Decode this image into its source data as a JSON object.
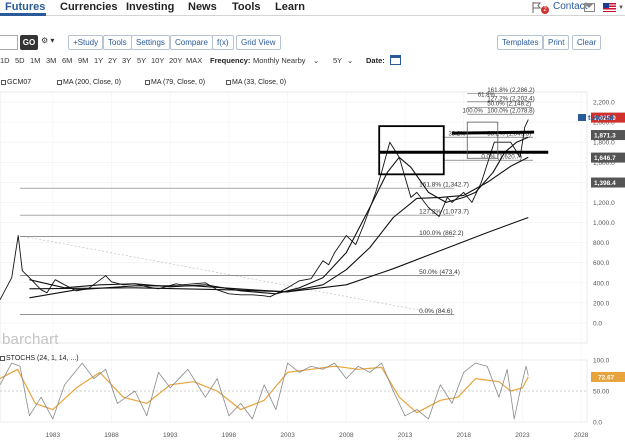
{
  "nav": {
    "items": [
      "Futures",
      "Currencies",
      "Investing",
      "News",
      "Tools",
      "Learn"
    ],
    "notification_count": "2",
    "contact_label": "Contact"
  },
  "toolbar": {
    "go_label": "GO",
    "options_label": "⚙ ▾",
    "buttons": [
      "+Study",
      "Tools",
      "Settings",
      "Compare",
      "f(x)",
      "Grid View"
    ],
    "right_buttons": [
      "Templates",
      "Print",
      "Clear"
    ]
  },
  "rangebar": {
    "ranges": [
      "1D",
      "5D",
      "1M",
      "3M",
      "6M",
      "9M",
      "1Y",
      "2Y",
      "3Y",
      "5Y",
      "10Y",
      "20Y",
      "MAX"
    ],
    "frequency_label": "Frequency:",
    "frequency_value": "Monthly Nearby",
    "period_value": "5Y",
    "date_label": "Date:"
  },
  "legend": {
    "items": [
      "GCM07",
      "MA (200, Close, 0)",
      "MA (79, Close, 0)",
      "MA (33, Close, 0)"
    ]
  },
  "tutorial_label": "tutorial",
  "watermark": "barchart",
  "stoch_label": "STOCHS (24, 1, 14, ...)",
  "colors": {
    "accent": "#2a5a9a",
    "price": "#111111",
    "stoch_slow": "#e8a33d",
    "stoch_fast": "#8a8a8a",
    "badge": "#555555"
  },
  "chart_data": [
    {
      "type": "line",
      "x_ticks": [
        "1983",
        "1988",
        "1993",
        "1998",
        "2003",
        "2008",
        "2013",
        "2018",
        "2023",
        "2028"
      ],
      "x_range": [
        1978.5,
        2028.5
      ],
      "y_ticks": [
        "0.0",
        "200.0",
        "400.0",
        "600.0",
        "800.0",
        "1,000.0",
        "1,200.0",
        "1,400.0",
        "1,600.0",
        "1,800.0",
        "2,000.0",
        "2,200.0"
      ],
      "ylim": [
        -200,
        2300
      ],
      "series": [
        {
          "role": "price",
          "x": [
            1978.5,
            1979.5,
            1980.05,
            1980.4,
            1981,
            1982,
            1982.5,
            1983.2,
            1984,
            1985,
            1986,
            1987.5,
            1988,
            1989,
            1990,
            1991,
            1992,
            1993.5,
            1994,
            1996,
            1997,
            1998,
            1999,
            2000,
            2001,
            2001.5,
            2003,
            2004,
            2005,
            2006,
            2006.5,
            2007,
            2008,
            2008.8,
            2009.5,
            2010.5,
            2011,
            2011.7,
            2012.5,
            2013.5,
            2014,
            2015,
            2015.9,
            2016.6,
            2017,
            2018,
            2018.7,
            2019.5,
            2020.6,
            2021.3,
            2022,
            2022.8,
            2023.2,
            2023.5
          ],
          "y": [
            230,
            450,
            870,
            520,
            450,
            330,
            300,
            430,
            380,
            320,
            340,
            470,
            410,
            380,
            390,
            360,
            340,
            390,
            380,
            400,
            330,
            290,
            280,
            280,
            270,
            260,
            350,
            420,
            440,
            620,
            580,
            700,
            870,
            780,
            980,
            1300,
            1500,
            1800,
            1650,
            1250,
            1300,
            1150,
            1060,
            1250,
            1200,
            1300,
            1200,
            1400,
            1800,
            1800,
            1800,
            1650,
            1950,
            2025
          ]
        },
        {
          "role": "ma33",
          "x": [
            1981,
            1984,
            1987,
            1990,
            1993,
            1996,
            1999,
            2002,
            2004,
            2006,
            2008,
            2010,
            2011.5,
            2012.5,
            2013.5,
            2015,
            2016.5,
            2018,
            2019,
            2020.5,
            2021.5,
            2022.5,
            2023.5
          ],
          "y": [
            430,
            350,
            380,
            390,
            360,
            380,
            320,
            290,
            350,
            450,
            700,
            1150,
            1500,
            1650,
            1550,
            1300,
            1200,
            1250,
            1300,
            1500,
            1700,
            1800,
            1850
          ]
        },
        {
          "role": "ma79",
          "x": [
            1981,
            1985,
            1990,
            1995,
            2000,
            2003,
            2006,
            2008,
            2010,
            2012,
            2014,
            2016,
            2018,
            2020,
            2022,
            2023.5
          ],
          "y": [
            250,
            330,
            370,
            370,
            330,
            310,
            380,
            530,
            750,
            1050,
            1240,
            1250,
            1270,
            1400,
            1560,
            1650
          ]
        },
        {
          "role": "ma200",
          "x": [
            1981,
            1990,
            1998,
            2003,
            2008,
            2012,
            2016,
            2020,
            2023.5
          ],
          "y": [
            340,
            350,
            330,
            310,
            380,
            540,
            720,
            900,
            1050
          ]
        }
      ],
      "price_badges": [
        {
          "value": 2025.0,
          "label": "2,025.0"
        },
        {
          "value": 1871.3,
          "label": "1,871.3"
        },
        {
          "value": 1646.7,
          "label": "1,646.7"
        },
        {
          "value": 1398.4,
          "label": "1,398.4"
        }
      ],
      "fib_levels": [
        {
          "value": 84.6,
          "label": "0.0% (84.6)"
        },
        {
          "value": 473.4,
          "label": "50.0% (473.4)"
        },
        {
          "value": 862.2,
          "label": "100.0% (862.2)"
        },
        {
          "value": 1073.7,
          "label": "127.2% (1,073.7)"
        },
        {
          "value": 1342.7,
          "label": "161.8% (1,342.7)"
        },
        {
          "value": 1620.7,
          "label": "0.0% (1,620.7)"
        },
        {
          "value": 1849.5,
          "label": "38.2% (1,849.5)"
        },
        {
          "value": 2078.8,
          "label": "100.0% (2,078.8)"
        },
        {
          "value": 2148.2,
          "label": "50.0% (2,148.2)"
        },
        {
          "value": 2202.4,
          "label": "127.2% (2,202.4)"
        },
        {
          "value": 2286.2,
          "label": "161.8% (2,286.2)"
        }
      ],
      "fib_label_prefixes": [
        "100.0%",
        "61.8%",
        "127.2%",
        "50.0%",
        "161.8%",
        "38.2%"
      ]
    },
    {
      "type": "line",
      "title": "STOCHS (24, 1, 14, ...)",
      "y_ticks": [
        "0.0",
        "50.00",
        "100.0"
      ],
      "ylim": [
        0,
        100
      ],
      "last_value_label": "72.67",
      "series": [
        {
          "role": "slow",
          "color": "#e8a33d",
          "x": [
            1978.5,
            1980,
            1981.5,
            1983,
            1985,
            1987,
            1989,
            1991,
            1993,
            1995,
            1997,
            1999,
            2001,
            2003,
            2005,
            2007,
            2009,
            2011,
            2012.5,
            2014,
            2016,
            2017.5,
            2019,
            2021,
            2022,
            2023,
            2023.5
          ],
          "y": [
            70,
            85,
            30,
            20,
            55,
            80,
            40,
            30,
            60,
            65,
            50,
            20,
            35,
            80,
            85,
            90,
            85,
            88,
            40,
            15,
            35,
            40,
            70,
            65,
            50,
            55,
            72.67
          ]
        },
        {
          "role": "fast",
          "color": "#8a8a8a",
          "x": [
            1978.5,
            1979.5,
            1980.2,
            1981,
            1982,
            1983,
            1984,
            1985.5,
            1986.5,
            1987.5,
            1988.5,
            1990,
            1991,
            1992,
            1993,
            1994.5,
            1996,
            1997,
            1998,
            1999,
            2000,
            2001,
            2002,
            2003,
            2004,
            2005,
            2006,
            2007,
            2008,
            2009,
            2010,
            2011,
            2012,
            2013,
            2014,
            2015,
            2016,
            2017,
            2018,
            2019,
            2020,
            2021,
            2021.7,
            2022.3,
            2022.8,
            2023.3,
            2023.5
          ],
          "y": [
            60,
            95,
            90,
            10,
            40,
            5,
            60,
            95,
            70,
            85,
            30,
            50,
            10,
            80,
            55,
            85,
            40,
            70,
            10,
            30,
            5,
            60,
            20,
            95,
            80,
            90,
            85,
            95,
            70,
            90,
            80,
            95,
            50,
            10,
            20,
            5,
            60,
            30,
            80,
            95,
            90,
            40,
            85,
            5,
            50,
            90,
            75
          ]
        }
      ]
    }
  ]
}
